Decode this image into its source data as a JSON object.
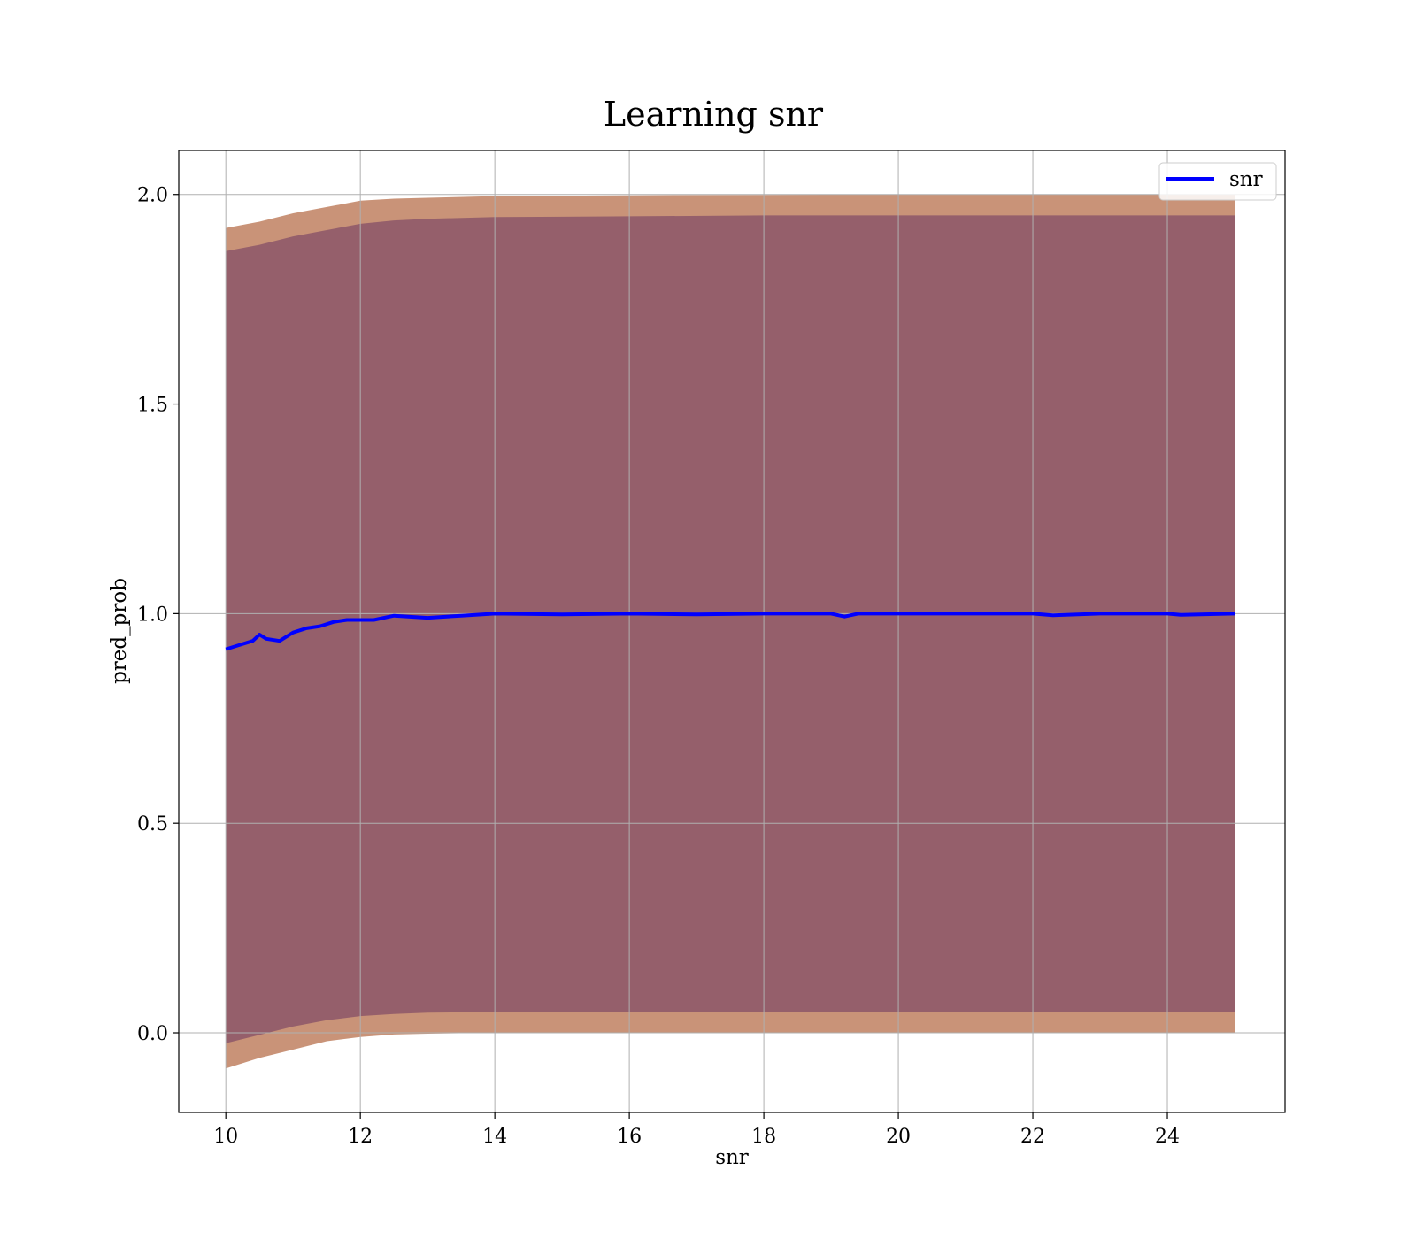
{
  "chart_data": {
    "type": "line",
    "title": "Learning snr",
    "xlabel": "snr",
    "ylabel": "pred_prob",
    "xlim": [
      9.3,
      25.75
    ],
    "ylim": [
      -0.19,
      2.105
    ],
    "xticks": [
      10,
      12,
      14,
      16,
      18,
      20,
      22,
      24
    ],
    "yticks": [
      0.0,
      0.5,
      1.0,
      1.5,
      2.0
    ],
    "xtick_labels": [
      "10",
      "12",
      "14",
      "16",
      "18",
      "20",
      "22",
      "24"
    ],
    "ytick_labels": [
      "0.0",
      "0.5",
      "1.0",
      "1.5",
      "2.0"
    ],
    "grid": true,
    "legend_position": "top-right",
    "series": [
      {
        "name": "snr",
        "color": "#0000ff",
        "x": [
          10.0,
          10.2,
          10.4,
          10.5,
          10.6,
          10.8,
          11.0,
          11.2,
          11.4,
          11.6,
          11.8,
          12.0,
          12.2,
          12.5,
          13.0,
          13.5,
          14.0,
          15.0,
          16.0,
          17.0,
          18.0,
          19.0,
          19.2,
          19.4,
          20.0,
          21.0,
          22.0,
          22.3,
          23.0,
          24.0,
          24.2,
          25.0
        ],
        "y": [
          0.915,
          0.925,
          0.935,
          0.95,
          0.94,
          0.935,
          0.955,
          0.965,
          0.97,
          0.98,
          0.985,
          0.985,
          0.985,
          0.995,
          0.99,
          0.995,
          1.0,
          0.998,
          1.0,
          0.998,
          1.0,
          1.0,
          0.993,
          1.0,
          1.0,
          1.0,
          1.0,
          0.996,
          1.0,
          1.0,
          0.997,
          1.0
        ]
      }
    ],
    "bands": [
      {
        "color": "#c08060",
        "opacity": 0.85,
        "x": [
          10.0,
          10.5,
          11.0,
          11.5,
          12.0,
          12.5,
          13.0,
          14.0,
          16.0,
          18.0,
          20.0,
          22.0,
          24.0,
          25.0
        ],
        "upper": [
          1.92,
          1.935,
          1.955,
          1.97,
          1.985,
          1.99,
          1.992,
          1.996,
          1.998,
          1.999,
          2.0,
          2.0,
          2.0,
          2.0
        ],
        "lower": [
          -0.085,
          -0.06,
          -0.04,
          -0.02,
          -0.01,
          -0.004,
          -0.002,
          0.0,
          0.0,
          0.0,
          0.0,
          0.0,
          0.0,
          0.0
        ]
      },
      {
        "color": "#8a5468",
        "opacity": 0.82,
        "x": [
          10.0,
          10.5,
          11.0,
          11.5,
          12.0,
          12.5,
          13.0,
          14.0,
          16.0,
          18.0,
          20.0,
          22.0,
          24.0,
          25.0
        ],
        "upper": [
          1.865,
          1.88,
          1.9,
          1.915,
          1.93,
          1.938,
          1.942,
          1.946,
          1.948,
          1.95,
          1.95,
          1.95,
          1.95,
          1.95
        ],
        "lower": [
          -0.025,
          -0.005,
          0.015,
          0.03,
          0.04,
          0.045,
          0.048,
          0.05,
          0.05,
          0.05,
          0.05,
          0.05,
          0.05,
          0.05
        ]
      }
    ]
  }
}
